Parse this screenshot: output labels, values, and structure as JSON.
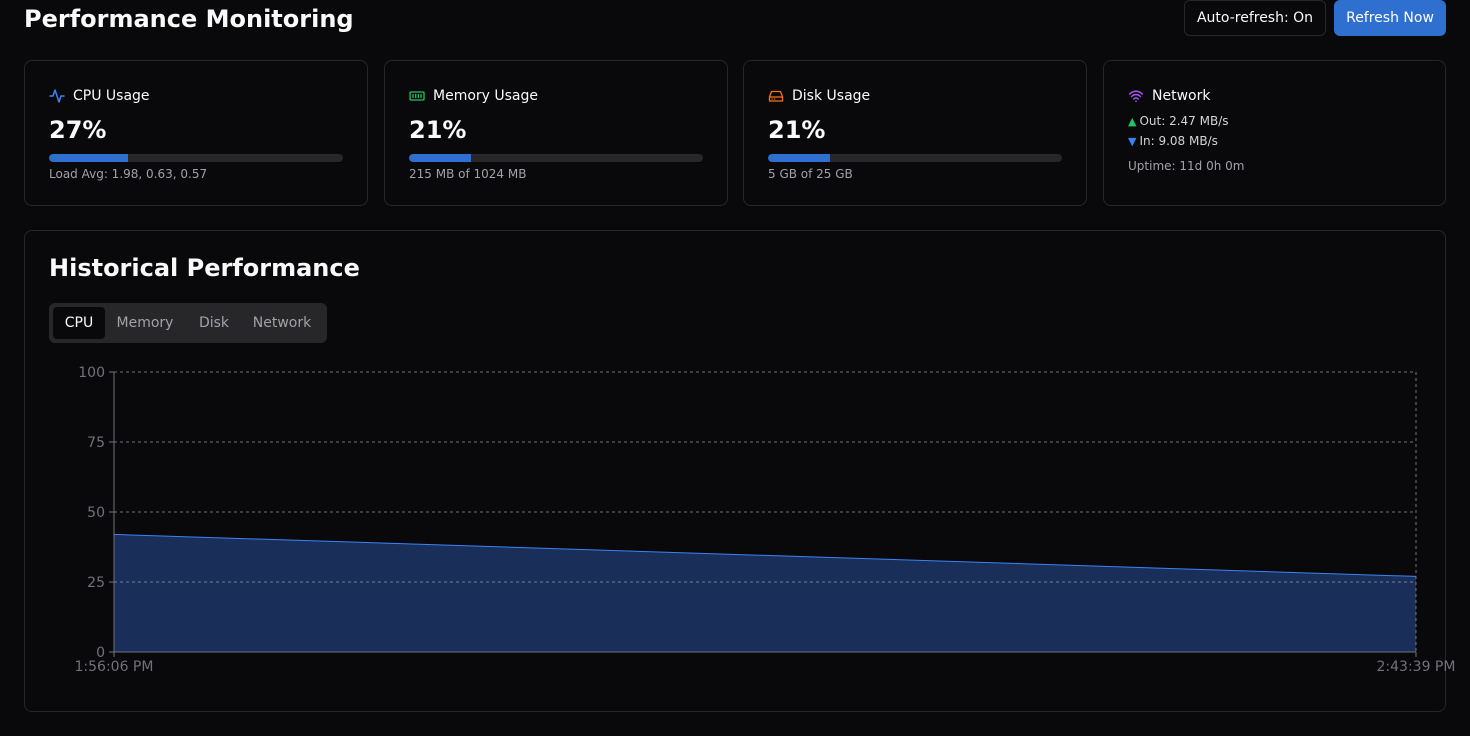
{
  "header": {
    "title": "Performance Monitoring",
    "auto_refresh_label": "Auto-refresh: On",
    "refresh_label": "Refresh Now"
  },
  "cards": {
    "cpu": {
      "title": "CPU Usage",
      "value": "27%",
      "percent": 27,
      "sub": "Load Avg: 1.98, 0.63, 0.57",
      "icon": "activity-icon",
      "color": "#3b82f6"
    },
    "memory": {
      "title": "Memory Usage",
      "value": "21%",
      "percent": 21,
      "sub": "215 MB of 1024 MB",
      "icon": "memory-chip-icon",
      "color": "#22c55e"
    },
    "disk": {
      "title": "Disk Usage",
      "value": "21%",
      "percent": 21,
      "sub": "5 GB of 25 GB",
      "icon": "hard-drive-icon",
      "color": "#f97316"
    },
    "network": {
      "title": "Network",
      "out": "Out: 2.47 MB/s",
      "in": "In: 9.08 MB/s",
      "uptime": "Uptime: 11d 0h 0m",
      "icon": "wifi-icon",
      "color": "#a855f7"
    }
  },
  "history": {
    "title": "Historical Performance",
    "tabs": [
      {
        "label": "CPU",
        "active": true
      },
      {
        "label": "Memory",
        "active": false
      },
      {
        "label": "Disk",
        "active": false
      },
      {
        "label": "Network",
        "active": false
      }
    ]
  },
  "colors": {
    "accent": "#2f6fd0",
    "chart_line": "#3b82f6",
    "chart_fill": "#1e3a6e"
  },
  "chart_data": {
    "type": "area",
    "x": [
      "1:56:06 PM",
      "2:43:39 PM"
    ],
    "series": [
      {
        "values": [
          42,
          27
        ]
      }
    ],
    "y_ticks": [
      0,
      25,
      50,
      75,
      100
    ],
    "ylim": [
      0,
      100
    ],
    "grid": true
  }
}
